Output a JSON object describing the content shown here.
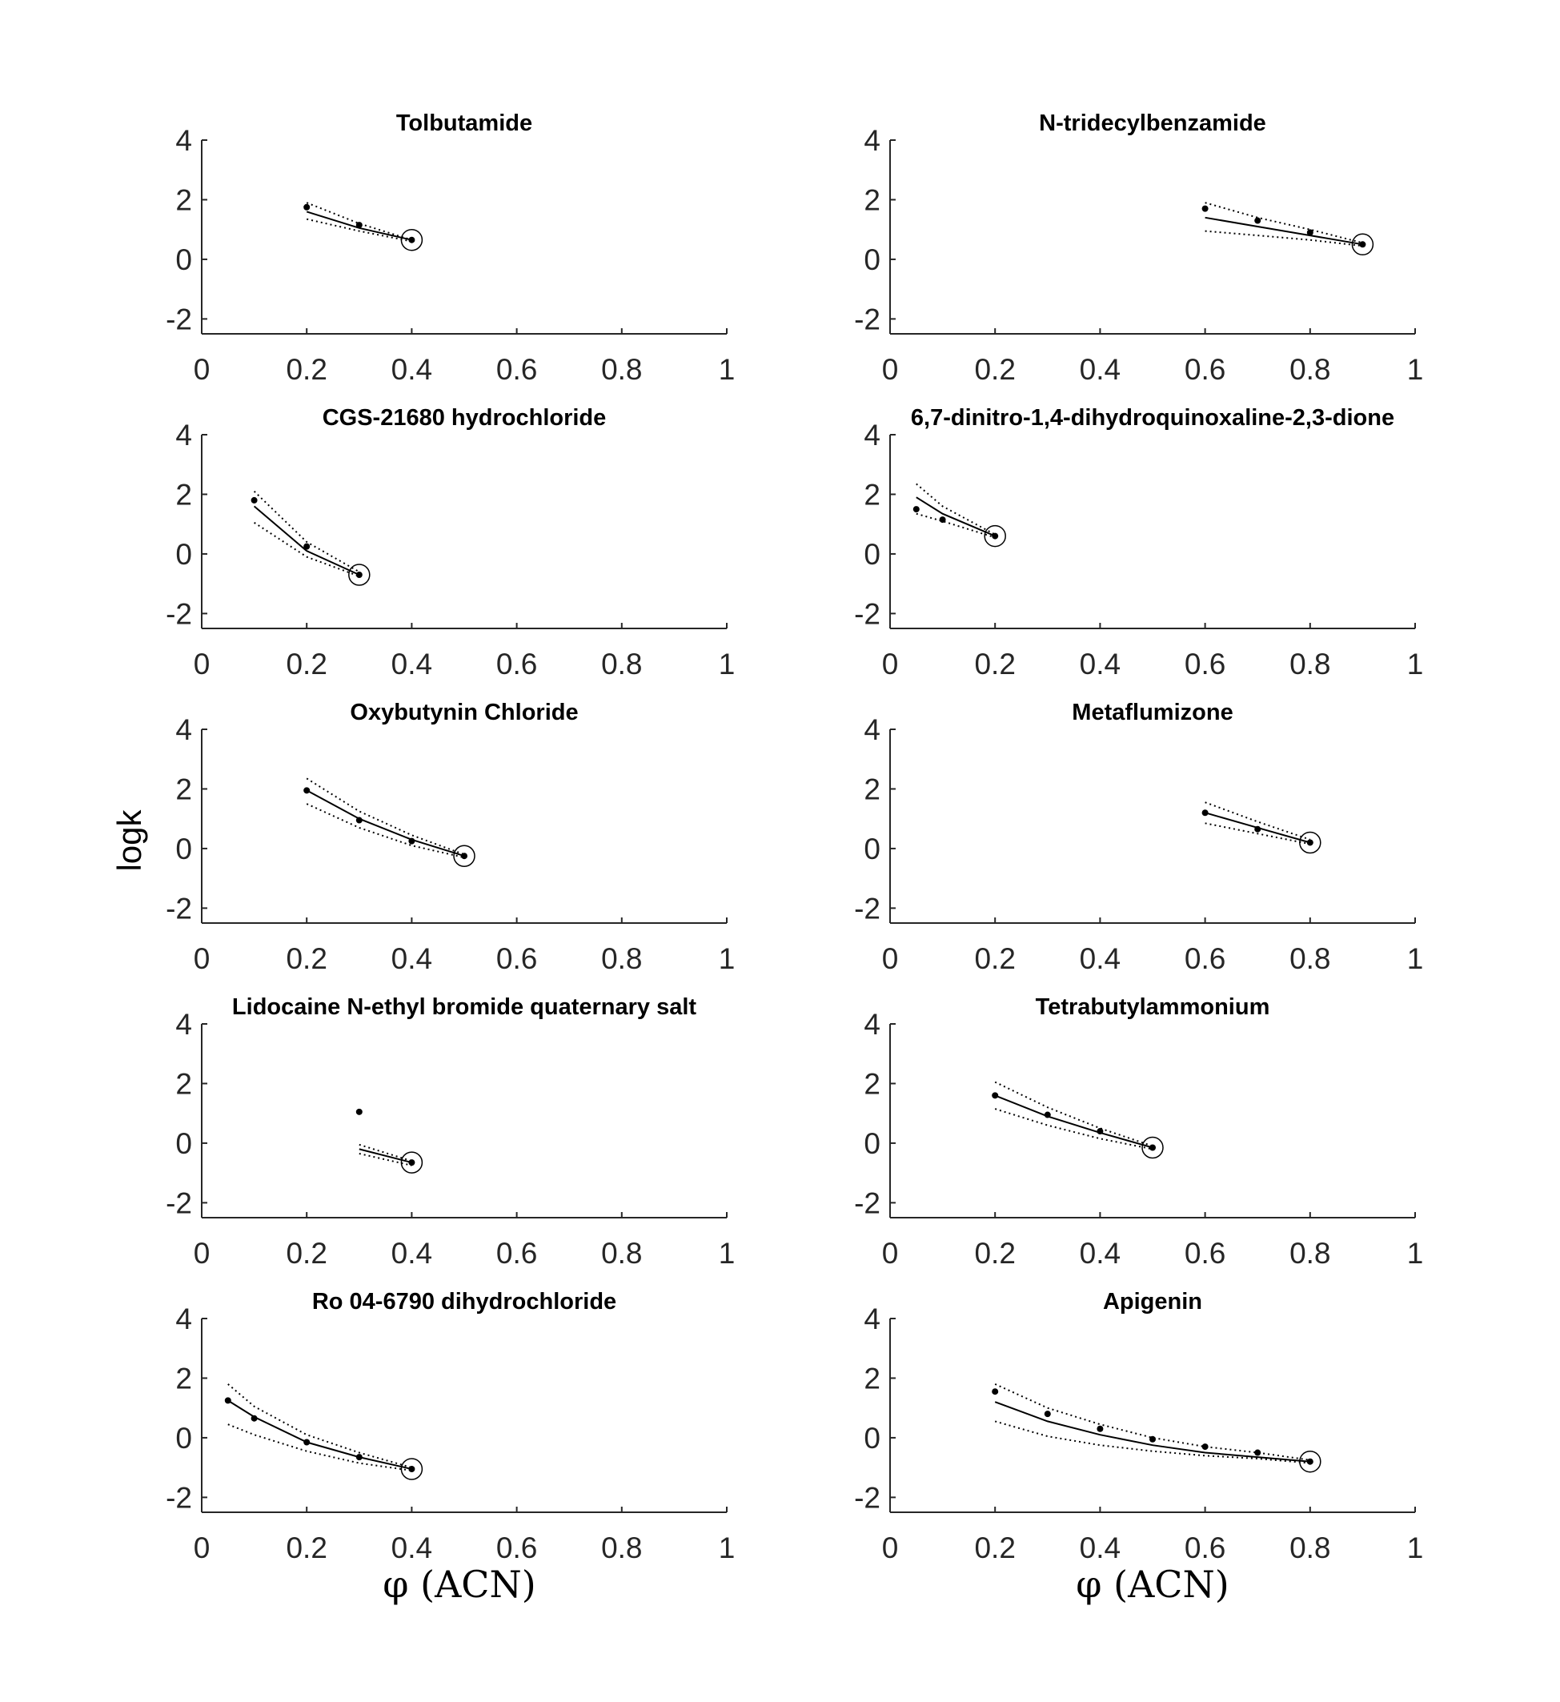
{
  "figure": {
    "ylabel": "logk",
    "xlabels": [
      "φ (ACN)",
      "φ (ACN)"
    ]
  },
  "chart_data": [
    {
      "type": "line",
      "title": "Tolbutamide",
      "xlim": [
        0,
        1
      ],
      "ylim": [
        -2.5,
        4
      ],
      "x_ticks": [
        "0",
        "0.2",
        "0.4",
        "0.6",
        "0.8",
        "1"
      ],
      "y_ticks": [
        "4",
        "2",
        "0",
        "-2"
      ],
      "points": {
        "x": [
          0.2,
          0.3,
          0.4
        ],
        "y": [
          1.75,
          1.15,
          0.65
        ]
      },
      "fit": {
        "x": [
          0.2,
          0.3,
          0.4
        ],
        "y": [
          1.6,
          1.05,
          0.65
        ]
      },
      "upper": {
        "x": [
          0.2,
          0.3,
          0.4
        ],
        "y": [
          1.9,
          1.2,
          0.65
        ]
      },
      "lower": {
        "x": [
          0.2,
          0.3,
          0.4
        ],
        "y": [
          1.35,
          0.95,
          0.6
        ]
      },
      "circled": {
        "x": 0.4,
        "y": 0.65
      }
    },
    {
      "type": "line",
      "title": "N-tridecylbenzamide",
      "xlim": [
        0,
        1
      ],
      "ylim": [
        -2.5,
        4
      ],
      "x_ticks": [
        "0",
        "0.2",
        "0.4",
        "0.6",
        "0.8",
        "1"
      ],
      "y_ticks": [
        "4",
        "2",
        "0",
        "-2"
      ],
      "points": {
        "x": [
          0.6,
          0.7,
          0.8,
          0.9
        ],
        "y": [
          1.7,
          1.3,
          0.9,
          0.5
        ]
      },
      "fit": {
        "x": [
          0.6,
          0.7,
          0.8,
          0.9
        ],
        "y": [
          1.4,
          1.1,
          0.8,
          0.5
        ]
      },
      "upper": {
        "x": [
          0.6,
          0.7,
          0.8,
          0.9
        ],
        "y": [
          1.9,
          1.4,
          1.0,
          0.55
        ]
      },
      "lower": {
        "x": [
          0.6,
          0.7,
          0.8,
          0.9
        ],
        "y": [
          0.95,
          0.8,
          0.65,
          0.45
        ]
      },
      "circled": {
        "x": 0.9,
        "y": 0.5
      }
    },
    {
      "type": "line",
      "title": "CGS-21680 hydrochloride",
      "xlim": [
        0,
        1
      ],
      "ylim": [
        -2.5,
        4
      ],
      "x_ticks": [
        "0",
        "0.2",
        "0.4",
        "0.6",
        "0.8",
        "1"
      ],
      "y_ticks": [
        "4",
        "2",
        "0",
        "-2"
      ],
      "points": {
        "x": [
          0.1,
          0.2,
          0.3
        ],
        "y": [
          1.8,
          0.25,
          -0.7
        ]
      },
      "fit": {
        "x": [
          0.1,
          0.2,
          0.3
        ],
        "y": [
          1.6,
          0.1,
          -0.7
        ]
      },
      "upper": {
        "x": [
          0.1,
          0.2,
          0.3
        ],
        "y": [
          2.1,
          0.4,
          -0.6
        ]
      },
      "lower": {
        "x": [
          0.1,
          0.2,
          0.3
        ],
        "y": [
          1.05,
          -0.1,
          -0.75
        ]
      },
      "circled": {
        "x": 0.3,
        "y": -0.7
      }
    },
    {
      "type": "line",
      "title": "6,7-dinitro-1,4-dihydroquinoxaline-2,3-dione",
      "xlim": [
        0,
        1
      ],
      "ylim": [
        -2.5,
        4
      ],
      "x_ticks": [
        "0",
        "0.2",
        "0.4",
        "0.6",
        "0.8",
        "1"
      ],
      "y_ticks": [
        "4",
        "2",
        "0",
        "-2"
      ],
      "points": {
        "x": [
          0.05,
          0.1,
          0.2
        ],
        "y": [
          1.5,
          1.15,
          0.6
        ]
      },
      "fit": {
        "x": [
          0.05,
          0.1,
          0.2
        ],
        "y": [
          1.9,
          1.35,
          0.6
        ]
      },
      "upper": {
        "x": [
          0.05,
          0.1,
          0.2
        ],
        "y": [
          2.35,
          1.6,
          0.65
        ]
      },
      "lower": {
        "x": [
          0.05,
          0.1,
          0.2
        ],
        "y": [
          1.35,
          1.1,
          0.55
        ]
      },
      "circled": {
        "x": 0.2,
        "y": 0.6
      }
    },
    {
      "type": "line",
      "title": "Oxybutynin Chloride",
      "xlim": [
        0,
        1
      ],
      "ylim": [
        -2.5,
        4
      ],
      "x_ticks": [
        "0",
        "0.2",
        "0.4",
        "0.6",
        "0.8",
        "1"
      ],
      "y_ticks": [
        "4",
        "2",
        "0",
        "-2"
      ],
      "points": {
        "x": [
          0.2,
          0.3,
          0.4,
          0.5
        ],
        "y": [
          1.95,
          0.95,
          0.25,
          -0.25
        ]
      },
      "fit": {
        "x": [
          0.2,
          0.3,
          0.4,
          0.5
        ],
        "y": [
          1.95,
          1.0,
          0.3,
          -0.25
        ]
      },
      "upper": {
        "x": [
          0.2,
          0.3,
          0.4,
          0.5
        ],
        "y": [
          2.35,
          1.25,
          0.45,
          -0.2
        ]
      },
      "lower": {
        "x": [
          0.2,
          0.3,
          0.4,
          0.5
        ],
        "y": [
          1.5,
          0.7,
          0.1,
          -0.3
        ]
      },
      "circled": {
        "x": 0.5,
        "y": -0.25
      }
    },
    {
      "type": "line",
      "title": "Metaflumizone",
      "xlim": [
        0,
        1
      ],
      "ylim": [
        -2.5,
        4
      ],
      "x_ticks": [
        "0",
        "0.2",
        "0.4",
        "0.6",
        "0.8",
        "1"
      ],
      "y_ticks": [
        "4",
        "2",
        "0",
        "-2"
      ],
      "points": {
        "x": [
          0.6,
          0.7,
          0.8
        ],
        "y": [
          1.2,
          0.65,
          0.2
        ]
      },
      "fit": {
        "x": [
          0.6,
          0.7,
          0.8
        ],
        "y": [
          1.2,
          0.7,
          0.2
        ]
      },
      "upper": {
        "x": [
          0.6,
          0.7,
          0.8
        ],
        "y": [
          1.55,
          0.9,
          0.3
        ]
      },
      "lower": {
        "x": [
          0.6,
          0.7,
          0.8
        ],
        "y": [
          0.85,
          0.5,
          0.15
        ]
      },
      "circled": {
        "x": 0.8,
        "y": 0.2
      }
    },
    {
      "type": "line",
      "title": "Lidocaine N-ethyl bromide quaternary salt",
      "xlim": [
        0,
        1
      ],
      "ylim": [
        -2.5,
        4
      ],
      "x_ticks": [
        "0",
        "0.2",
        "0.4",
        "0.6",
        "0.8",
        "1"
      ],
      "y_ticks": [
        "4",
        "2",
        "0",
        "-2"
      ],
      "points": {
        "x": [
          0.3,
          0.4
        ],
        "y": [
          1.05,
          -0.65
        ]
      },
      "fit": {
        "x": [
          0.3,
          0.4
        ],
        "y": [
          -0.2,
          -0.65
        ]
      },
      "upper": {
        "x": [
          0.3,
          0.4
        ],
        "y": [
          -0.05,
          -0.6
        ]
      },
      "lower": {
        "x": [
          0.3,
          0.4
        ],
        "y": [
          -0.35,
          -0.75
        ]
      },
      "circled": {
        "x": 0.4,
        "y": -0.65
      }
    },
    {
      "type": "line",
      "title": "Tetrabutylammonium",
      "xlim": [
        0,
        1
      ],
      "ylim": [
        -2.5,
        4
      ],
      "x_ticks": [
        "0",
        "0.2",
        "0.4",
        "0.6",
        "0.8",
        "1"
      ],
      "y_ticks": [
        "4",
        "2",
        "0",
        "-2"
      ],
      "points": {
        "x": [
          0.2,
          0.3,
          0.4,
          0.5
        ],
        "y": [
          1.6,
          0.95,
          0.4,
          -0.15
        ]
      },
      "fit": {
        "x": [
          0.2,
          0.3,
          0.4,
          0.5
        ],
        "y": [
          1.6,
          0.9,
          0.35,
          -0.15
        ]
      },
      "upper": {
        "x": [
          0.2,
          0.3,
          0.4,
          0.5
        ],
        "y": [
          2.05,
          1.2,
          0.5,
          -0.1
        ]
      },
      "lower": {
        "x": [
          0.2,
          0.3,
          0.4,
          0.5
        ],
        "y": [
          1.15,
          0.6,
          0.15,
          -0.2
        ]
      },
      "circled": {
        "x": 0.5,
        "y": -0.15
      }
    },
    {
      "type": "line",
      "title": "Ro 04-6790 dihydrochloride",
      "xlim": [
        0,
        1
      ],
      "ylim": [
        -2.5,
        4
      ],
      "x_ticks": [
        "0",
        "0.2",
        "0.4",
        "0.6",
        "0.8",
        "1"
      ],
      "y_ticks": [
        "4",
        "2",
        "0",
        "-2"
      ],
      "points": {
        "x": [
          0.05,
          0.1,
          0.2,
          0.3,
          0.4
        ],
        "y": [
          1.25,
          0.65,
          -0.15,
          -0.65,
          -1.05
        ]
      },
      "fit": {
        "x": [
          0.05,
          0.1,
          0.2,
          0.3,
          0.4
        ],
        "y": [
          1.25,
          0.7,
          -0.15,
          -0.65,
          -1.05
        ]
      },
      "upper": {
        "x": [
          0.05,
          0.1,
          0.2,
          0.3,
          0.4
        ],
        "y": [
          1.8,
          1.05,
          0.1,
          -0.5,
          -1.0
        ]
      },
      "lower": {
        "x": [
          0.05,
          0.1,
          0.2,
          0.3,
          0.4
        ],
        "y": [
          0.45,
          0.1,
          -0.45,
          -0.85,
          -1.1
        ]
      },
      "circled": {
        "x": 0.4,
        "y": -1.05
      }
    },
    {
      "type": "line",
      "title": "Apigenin",
      "xlim": [
        0,
        1
      ],
      "ylim": [
        -2.5,
        4
      ],
      "x_ticks": [
        "0",
        "0.2",
        "0.4",
        "0.6",
        "0.8",
        "1"
      ],
      "y_ticks": [
        "4",
        "2",
        "0",
        "-2"
      ],
      "points": {
        "x": [
          0.2,
          0.3,
          0.4,
          0.5,
          0.6,
          0.7,
          0.8
        ],
        "y": [
          1.55,
          0.8,
          0.3,
          -0.05,
          -0.3,
          -0.5,
          -0.8
        ]
      },
      "fit": {
        "x": [
          0.2,
          0.3,
          0.4,
          0.5,
          0.6,
          0.7,
          0.8
        ],
        "y": [
          1.2,
          0.55,
          0.1,
          -0.25,
          -0.5,
          -0.65,
          -0.8
        ]
      },
      "upper": {
        "x": [
          0.2,
          0.3,
          0.4,
          0.5,
          0.6,
          0.7,
          0.8
        ],
        "y": [
          1.8,
          1.0,
          0.45,
          0.0,
          -0.3,
          -0.5,
          -0.75
        ]
      },
      "lower": {
        "x": [
          0.2,
          0.3,
          0.4,
          0.5,
          0.6,
          0.7,
          0.8
        ],
        "y": [
          0.55,
          0.05,
          -0.25,
          -0.45,
          -0.6,
          -0.7,
          -0.85
        ]
      },
      "circled": {
        "x": 0.8,
        "y": -0.8
      }
    }
  ]
}
